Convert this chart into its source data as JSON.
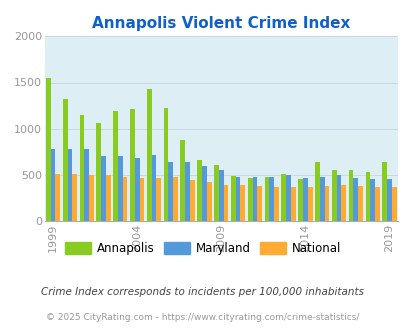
{
  "title": "Annapolis Violent Crime Index",
  "title_color": "#1060c8",
  "subtitle": "Crime Index corresponds to incidents per 100,000 inhabitants",
  "footer": "© 2025 CityRating.com - https://www.cityrating.com/crime-statistics/",
  "years": [
    1999,
    2000,
    2001,
    2002,
    2003,
    2004,
    2005,
    2006,
    2007,
    2008,
    2009,
    2010,
    2011,
    2012,
    2013,
    2014,
    2015,
    2016,
    2017,
    2018,
    2019
  ],
  "annapolis": [
    1550,
    1325,
    1145,
    1060,
    1195,
    1215,
    1425,
    1220,
    880,
    665,
    605,
    490,
    465,
    480,
    505,
    460,
    635,
    550,
    550,
    535,
    645
  ],
  "maryland": [
    785,
    785,
    775,
    700,
    700,
    685,
    710,
    645,
    640,
    595,
    550,
    480,
    475,
    480,
    500,
    465,
    480,
    500,
    465,
    460,
    455
  ],
  "national": [
    505,
    505,
    500,
    495,
    475,
    465,
    470,
    475,
    445,
    425,
    395,
    390,
    385,
    365,
    365,
    370,
    385,
    390,
    385,
    370,
    365
  ],
  "annapolis_color": "#88cc22",
  "maryland_color": "#5599dd",
  "national_color": "#ffaa33",
  "bg_color": "#ddeef5",
  "ylim": [
    0,
    2000
  ],
  "yticks": [
    0,
    500,
    1000,
    1500,
    2000
  ],
  "xtick_years": [
    1999,
    2004,
    2009,
    2014,
    2019
  ],
  "group_width": 0.85,
  "grid_color": "#c8d8e4",
  "tick_color": "#999999",
  "subtitle_color": "#444444",
  "footer_color": "#999999",
  "subtitle_fontsize": 7.5,
  "footer_fontsize": 6.5,
  "title_fontsize": 11,
  "tick_fontsize": 8,
  "legend_fontsize": 8.5
}
